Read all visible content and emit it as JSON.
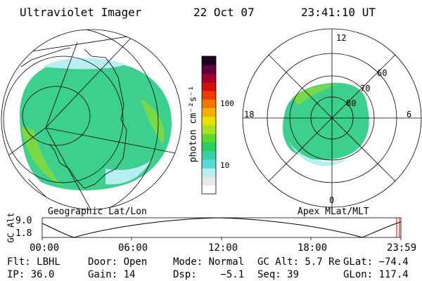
{
  "header": {
    "instrument": "Ultraviolet Imager",
    "date": "22 Oct 07",
    "time": "23:41:10 UT"
  },
  "colorbar": {
    "unit_label": "photon cm⁻²s⁻¹",
    "ticks": [
      "100",
      "10"
    ],
    "colors": [
      "#ffffff",
      "#e8e8e8",
      "#b8eef2",
      "#55dcdc",
      "#38d0a0",
      "#28d060",
      "#58d830",
      "#a8e028",
      "#e8e000",
      "#f0b000",
      "#f07800",
      "#e83c00",
      "#d01010",
      "#a00030",
      "#600040",
      "#200020"
    ]
  },
  "left_map": {
    "label": "Geographic Lat/Lon"
  },
  "right_map": {
    "label": "Apex MLat/MLT",
    "lat_labels": [
      "60",
      "70",
      "80"
    ],
    "mlt_labels": [
      "12",
      "18",
      "6",
      "0"
    ]
  },
  "timeline": {
    "axis_label": "GC Alt",
    "y_ticks": [
      "9.0",
      "1.8"
    ],
    "x_ticks": [
      "00:00",
      "06:00",
      "12:00",
      "18:00",
      "23:59"
    ]
  },
  "status": {
    "row1": [
      "Flt: LBHL",
      "Door: Open",
      "Mode: Normal",
      "GC Alt: 5.7 Re",
      "GLat: −74.4"
    ],
    "row2": [
      "IP: 36.0",
      "Gain: 14",
      "Dsp:    −5.1",
      "Seq: 39",
      "GLon: 117.4"
    ]
  }
}
